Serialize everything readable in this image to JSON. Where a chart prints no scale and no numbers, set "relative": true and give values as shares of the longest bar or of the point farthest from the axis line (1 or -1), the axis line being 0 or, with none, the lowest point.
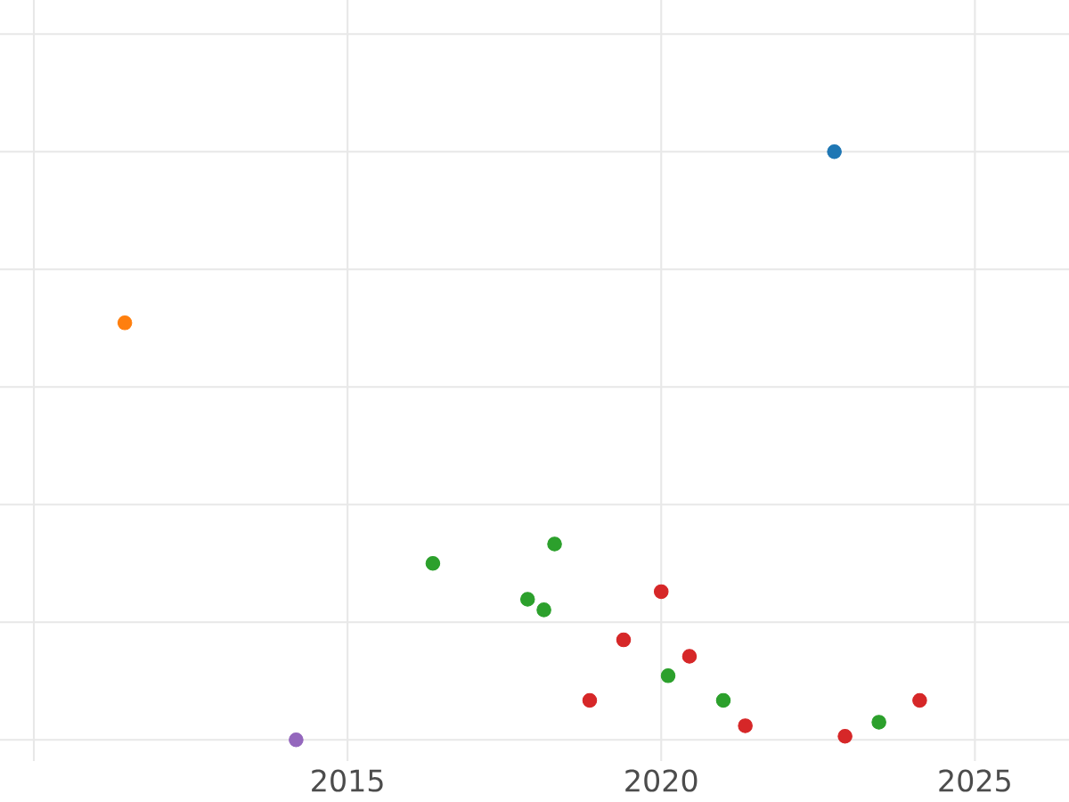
{
  "chart_data": {
    "type": "scatter",
    "relative": true,
    "grid": true,
    "marker": "circle",
    "tick_labels": "x",
    "xlim": [
      2009.46,
      2026.5
    ],
    "xticks": [
      {
        "value": 2010,
        "label": null
      },
      2015,
      2020,
      2025
    ],
    "series": [
      {
        "color": "#1f77b4",
        "x": [
          2022.76
        ],
        "values": [
          1
        ]
      },
      {
        "color": "#ff7f0e",
        "x": [
          2011.45
        ],
        "values": [
          0.709
        ]
      },
      {
        "color": "#2ca02c",
        "x": [
          2016.36,
          2018.3,
          2017.87,
          2018.13,
          2020.11,
          2020.99,
          2023.47
        ],
        "values": [
          0.3,
          0.333,
          0.239,
          0.221,
          0.109,
          0.067,
          0.03
        ]
      },
      {
        "color": "#d62728",
        "x": [
          2020.0,
          2019.4,
          2020.45,
          2018.86,
          2021.34,
          2022.93,
          2024.12
        ],
        "values": [
          0.252,
          0.17,
          0.142,
          0.067,
          0.024,
          0.006,
          0.067
        ]
      },
      {
        "color": "#9467bd",
        "x": [
          2014.18
        ],
        "values": [
          0
        ]
      }
    ]
  }
}
